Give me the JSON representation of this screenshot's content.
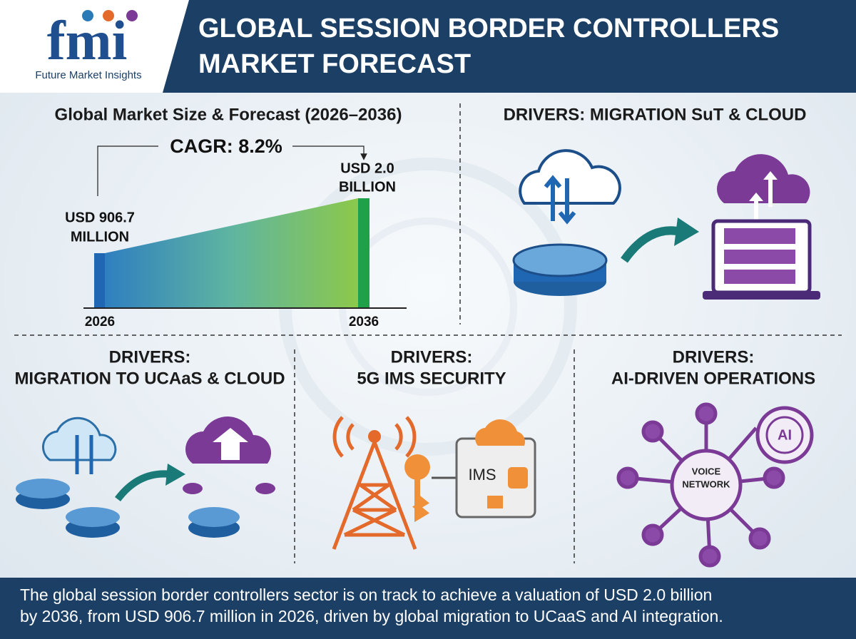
{
  "header": {
    "logo_text": "fmi",
    "logo_subtitle": "Future Market Insights",
    "title_line1": "GLOBAL SESSION BORDER CONTROLLERS",
    "title_line2": "MARKET FORECAST"
  },
  "forecast": {
    "title": "Global Market Size & Forecast (2026–2036)",
    "cagr": "CAGR: 8.2%",
    "start_value_line1": "USD 906.7",
    "start_value_line2": "MILLION",
    "end_value_line1": "USD 2.0",
    "end_value_line2": "BILLION",
    "start_year": "2026",
    "end_year": "2036"
  },
  "panels": [
    {
      "heading": "DRIVERS: MIGRATION SuT & CLOUD"
    },
    {
      "heading_line1": "DRIVERS:",
      "heading_line2": "MIGRATION TO UCAaS & CLOUD"
    },
    {
      "heading_line1": "DRIVERS:",
      "heading_line2": "5G IMS SECURITY",
      "icon_label": "IMS"
    },
    {
      "heading_line1": "DRIVERS:",
      "heading_line2": "AI-DRIVEN OPERATIONS",
      "hub_label_line1": "VOICE",
      "hub_label_line2": "NETWORK",
      "badge_label": "AI"
    }
  ],
  "footer": {
    "line1": "The global session border controllers sector is on track to achieve a valuation of USD 2.0 billion",
    "line2": "by 2036, from USD 906.7 million in 2026, driven by global migration to UCaaS and AI integration."
  }
}
